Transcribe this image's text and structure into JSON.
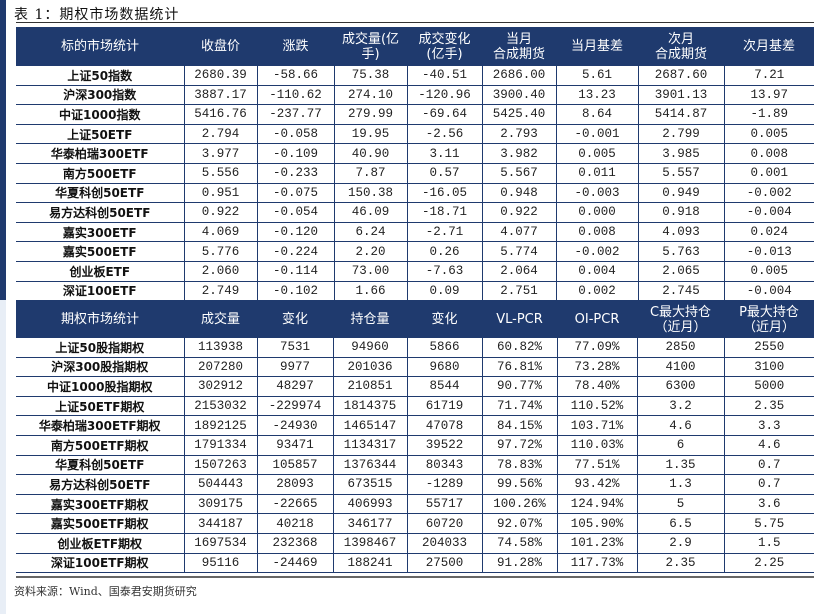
{
  "title": "表 1：期权市场数据统计",
  "table1": {
    "headers": [
      "标的市场统计",
      "收盘价",
      "涨跌",
      "成交量(亿\n手)",
      "成交变化\n(亿手)",
      "当月\n合成期货",
      "当月基差",
      "次月\n合成期货",
      "次月基差"
    ],
    "rows": [
      [
        "上证50指数",
        "2680.39",
        "-58.66",
        "75.38",
        "-40.51",
        "2686.00",
        "5.61",
        "2687.60",
        "7.21"
      ],
      [
        "沪深300指数",
        "3887.17",
        "-110.62",
        "274.10",
        "-120.96",
        "3900.40",
        "13.23",
        "3901.13",
        "13.97"
      ],
      [
        "中证1000指数",
        "5416.76",
        "-237.77",
        "279.99",
        "-69.64",
        "5425.40",
        "8.64",
        "5414.87",
        "-1.89"
      ],
      [
        "上证50ETF",
        "2.794",
        "-0.058",
        "19.95",
        "-2.56",
        "2.793",
        "-0.001",
        "2.799",
        "0.005"
      ],
      [
        "华泰柏瑞300ETF",
        "3.977",
        "-0.109",
        "40.90",
        "3.11",
        "3.982",
        "0.005",
        "3.985",
        "0.008"
      ],
      [
        "南方500ETF",
        "5.556",
        "-0.233",
        "7.87",
        "0.57",
        "5.567",
        "0.011",
        "5.557",
        "0.001"
      ],
      [
        "华夏科创50ETF",
        "0.951",
        "-0.075",
        "150.38",
        "-16.05",
        "0.948",
        "-0.003",
        "0.949",
        "-0.002"
      ],
      [
        "易方达科创50ETF",
        "0.922",
        "-0.054",
        "46.09",
        "-18.71",
        "0.922",
        "0.000",
        "0.918",
        "-0.004"
      ],
      [
        "嘉实300ETF",
        "4.069",
        "-0.120",
        "6.24",
        "-2.71",
        "4.077",
        "0.008",
        "4.093",
        "0.024"
      ],
      [
        "嘉实500ETF",
        "5.776",
        "-0.224",
        "2.20",
        "0.26",
        "5.774",
        "-0.002",
        "5.763",
        "-0.013"
      ],
      [
        "创业板ETF",
        "2.060",
        "-0.114",
        "73.00",
        "-7.63",
        "2.064",
        "0.004",
        "2.065",
        "0.005"
      ],
      [
        "深证100ETF",
        "2.749",
        "-0.102",
        "1.66",
        "0.09",
        "2.751",
        "0.002",
        "2.745",
        "-0.004"
      ]
    ]
  },
  "table2": {
    "headers": [
      "期权市场统计",
      "成交量",
      "变化",
      "持仓量",
      "变化",
      "VL-PCR",
      "OI-PCR",
      "C最大持仓\n（近月）",
      "P最大持仓\n（近月）"
    ],
    "rows": [
      [
        "上证50股指期权",
        "113938",
        "7531",
        "94960",
        "5866",
        "60.82%",
        "77.09%",
        "2850",
        "2550"
      ],
      [
        "沪深300股指期权",
        "207280",
        "9977",
        "201036",
        "9680",
        "76.81%",
        "73.28%",
        "4100",
        "3100"
      ],
      [
        "中证1000股指期权",
        "302912",
        "48297",
        "210851",
        "8544",
        "90.77%",
        "78.40%",
        "6300",
        "5000"
      ],
      [
        "上证50ETF期权",
        "2153032",
        "-229974",
        "1814375",
        "61719",
        "71.74%",
        "110.52%",
        "3.2",
        "2.35"
      ],
      [
        "华泰柏瑞300ETF期权",
        "1892125",
        "-24930",
        "1465147",
        "47078",
        "84.15%",
        "103.71%",
        "4.6",
        "3.3"
      ],
      [
        "南方500ETF期权",
        "1791334",
        "93471",
        "1134317",
        "39522",
        "97.72%",
        "110.03%",
        "6",
        "4.6"
      ],
      [
        "华夏科创50ETF",
        "1507263",
        "105857",
        "1376344",
        "80343",
        "78.83%",
        "77.51%",
        "1.35",
        "0.7"
      ],
      [
        "易方达科创50ETF",
        "504443",
        "28093",
        "673515",
        "-1289",
        "99.56%",
        "93.42%",
        "1.3",
        "0.7"
      ],
      [
        "嘉实300ETF期权",
        "309175",
        "-22665",
        "406993",
        "55717",
        "100.26%",
        "124.94%",
        "5",
        "3.6"
      ],
      [
        "嘉实500ETF期权",
        "344187",
        "40218",
        "346177",
        "60720",
        "92.07%",
        "105.90%",
        "6.5",
        "5.75"
      ],
      [
        "创业板ETF期权",
        "1697534",
        "232368",
        "1398467",
        "204033",
        "74.58%",
        "101.23%",
        "2.9",
        "1.5"
      ],
      [
        "深证100ETF期权",
        "95116",
        "-24469",
        "188241",
        "27500",
        "91.28%",
        "117.73%",
        "2.35",
        "2.25"
      ]
    ]
  },
  "source": "资料来源：Wind、国泰君安期货研究"
}
